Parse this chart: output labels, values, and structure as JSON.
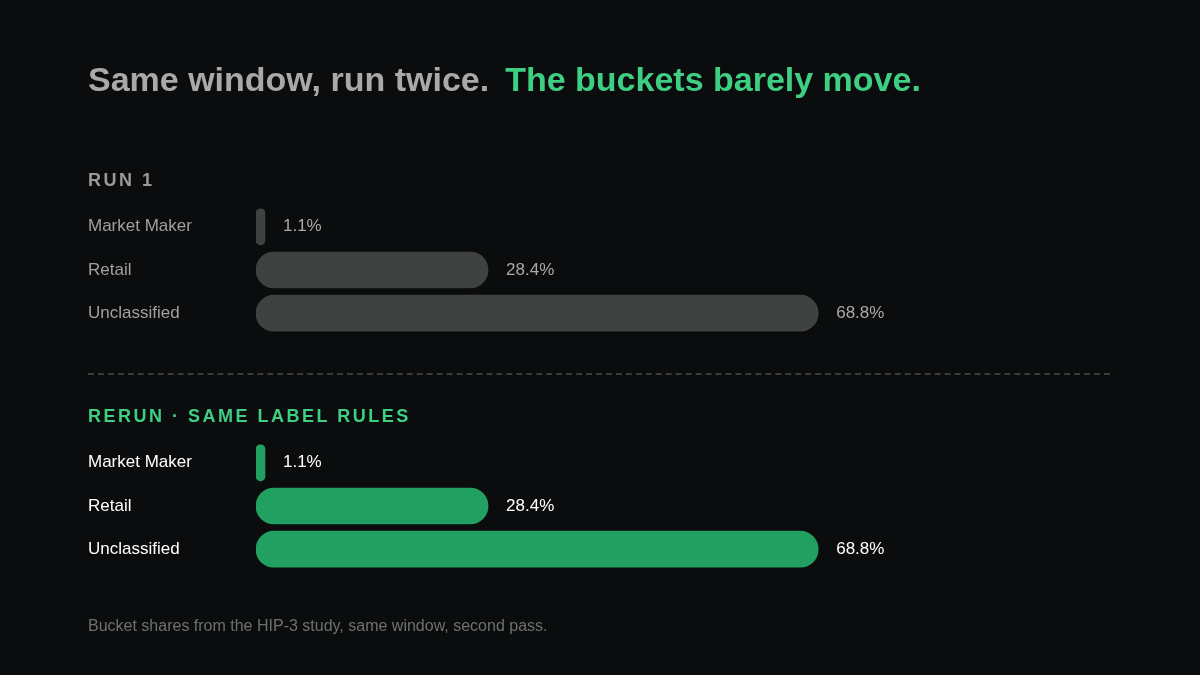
{
  "chart_data": [
    {
      "type": "other",
      "title": "Same window, run twice.",
      "subtitle": "The buckets barely move."
    },
    {
      "type": "bar",
      "orientation": "horizontal",
      "title": "RUN 1",
      "categories": [
        "Market Maker",
        "Retail",
        "Unclassified"
      ],
      "series": [
        {
          "color": "#3f4240",
          "values": [
            1.1,
            28.4,
            68.8
          ],
          "value_labels": [
            "1.1%",
            "28.4%",
            "68.8%"
          ]
        }
      ]
    },
    {
      "type": "bar",
      "orientation": "horizontal",
      "title": "RERUN · SAME LABEL RULES",
      "categories": [
        "Market Maker",
        "Retail",
        "Unclassified"
      ],
      "series": [
        {
          "color": "#22a062",
          "values": [
            1.1,
            28.4,
            68.8
          ],
          "value_labels": [
            "1.1%",
            "28.4%",
            "68.8%"
          ]
        }
      ],
      "annotations": [
        "Bucket shares from the HIP-3 study, same window, second pass."
      ]
    }
  ]
}
